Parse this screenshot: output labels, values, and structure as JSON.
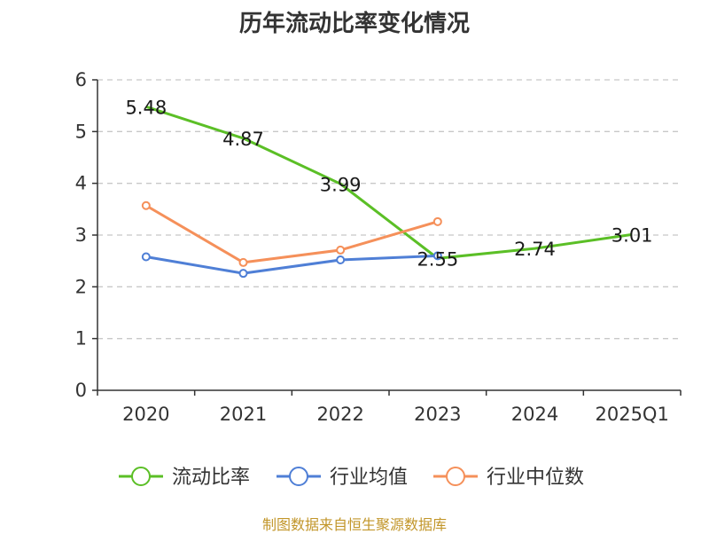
{
  "chart_data": {
    "type": "line",
    "title": "历年流动比率变化情况",
    "categories": [
      "2020",
      "2021",
      "2022",
      "2023",
      "2024",
      "2025Q1"
    ],
    "ylim": [
      0,
      6
    ],
    "yticks": [
      0,
      1,
      2,
      3,
      4,
      5,
      6
    ],
    "grid": true,
    "series": [
      {
        "name": "流动比率",
        "color": "#5bbf26",
        "values": [
          5.48,
          4.87,
          3.99,
          2.55,
          2.74,
          3.01
        ],
        "labels": [
          "5.48",
          "4.87",
          "3.99",
          "2.55",
          "2.74",
          "3.01"
        ],
        "markers": false
      },
      {
        "name": "行业均值",
        "color": "#4f7fd6",
        "values": [
          2.58,
          2.26,
          2.52,
          2.6,
          null,
          null
        ],
        "markers": true
      },
      {
        "name": "行业中位数",
        "color": "#f5905a",
        "values": [
          3.57,
          2.47,
          2.71,
          3.26,
          null,
          null
        ],
        "markers": true
      }
    ],
    "legend_position": "bottom"
  },
  "source_text": "制图数据来自恒生聚源数据库"
}
